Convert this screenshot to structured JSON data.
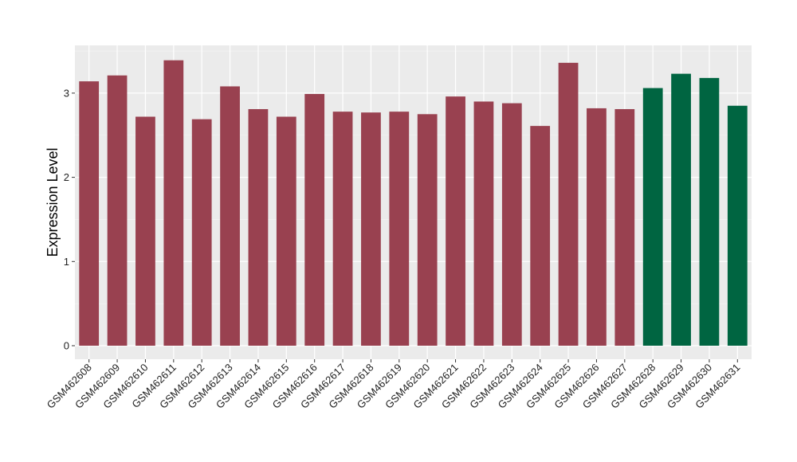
{
  "chart_data": {
    "type": "bar",
    "title": "",
    "xlabel": "",
    "ylabel": "Expression Level",
    "ylim": [
      -0.15,
      3.6
    ],
    "yticks": [
      0,
      1,
      2,
      3
    ],
    "grid": true,
    "legend": "none",
    "background_color": "#ebebeb",
    "categories": [
      "GSM462608",
      "GSM462609",
      "GSM462610",
      "GSM462611",
      "GSM462612",
      "GSM462613",
      "GSM462614",
      "GSM462615",
      "GSM462616",
      "GSM462617",
      "GSM462618",
      "GSM462619",
      "GSM462620",
      "GSM462621",
      "GSM462622",
      "GSM462623",
      "GSM462624",
      "GSM462625",
      "GSM462626",
      "GSM462627",
      "GSM462628",
      "GSM462629",
      "GSM462630",
      "GSM462631"
    ],
    "values": [
      3.14,
      3.21,
      2.72,
      3.39,
      2.69,
      3.08,
      2.81,
      2.72,
      2.99,
      2.78,
      2.77,
      2.78,
      2.75,
      2.96,
      2.9,
      2.88,
      2.61,
      3.36,
      2.82,
      2.81,
      3.06,
      3.23,
      3.18,
      2.85
    ],
    "colors": [
      "#994150",
      "#994150",
      "#994150",
      "#994150",
      "#994150",
      "#994150",
      "#994150",
      "#994150",
      "#994150",
      "#994150",
      "#994150",
      "#994150",
      "#994150",
      "#994150",
      "#994150",
      "#994150",
      "#994150",
      "#994150",
      "#994150",
      "#994150",
      "#006541",
      "#006541",
      "#006541",
      "#006541"
    ]
  }
}
